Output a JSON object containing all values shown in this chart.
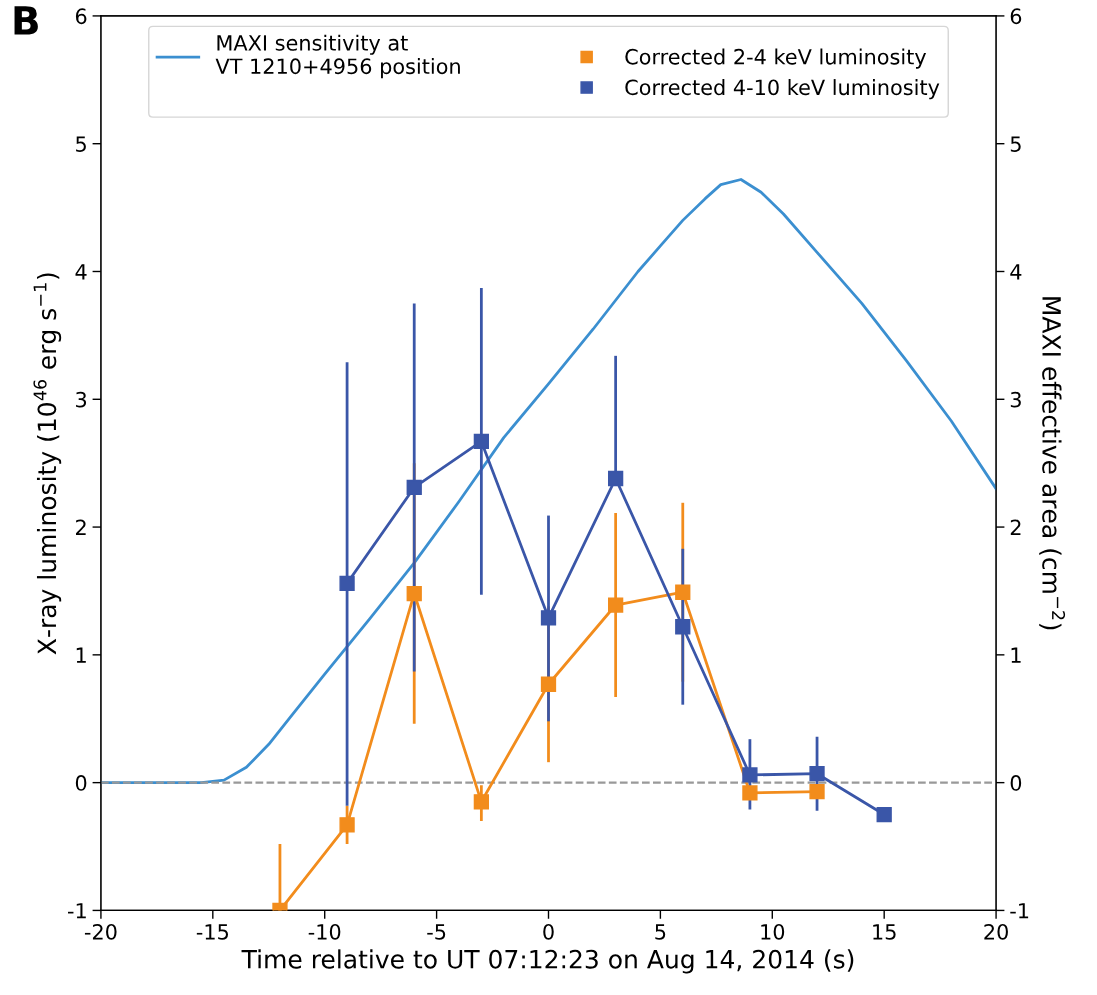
{
  "chart_data": {
    "type": "line",
    "xlabel": "Time relative to UT 07:12:23 on Aug 14, 2014 (s)",
    "ylabel": "X-ray luminosity (10$^{46}$ erg s$^{−1}$)",
    "y2label": "MAXI effective area (cm$^{−2}$)",
    "annotations": [
      "B"
    ],
    "xlim": [
      -20,
      20
    ],
    "xticks": [
      -20,
      -15,
      -10,
      -5,
      0,
      5,
      10,
      15,
      20
    ],
    "ylim": [
      -1,
      6
    ],
    "yticks": [
      -1,
      0,
      1,
      2,
      3,
      4,
      5,
      6
    ],
    "y2lim": [
      -1,
      6
    ],
    "y2ticks": [
      -1,
      0,
      1,
      2,
      3,
      4,
      5,
      6
    ],
    "grid": false,
    "legend": "top",
    "marker": "square",
    "line_style": "solid",
    "ref_lines": [
      {
        "axis": "y",
        "value": 0,
        "color": "#999999",
        "line_style": "dashed"
      }
    ],
    "series": [
      {
        "name": "MAXI sensitivity at\nVT 1210+4956 position",
        "axis": "y2",
        "color": "#3b8fd0",
        "marker": "none",
        "x": [
          -20,
          -15.5,
          -14.5,
          -13.5,
          -12.5,
          -11.5,
          -10,
          -8,
          -6,
          -4,
          -2,
          0,
          2,
          4,
          5,
          6,
          7,
          7.7,
          8.6,
          9.5,
          10.5,
          12,
          14,
          16,
          18,
          20
        ],
        "values": [
          0,
          0,
          0.02,
          0.12,
          0.3,
          0.52,
          0.85,
          1.28,
          1.72,
          2.2,
          2.7,
          3.12,
          3.55,
          4.0,
          4.2,
          4.4,
          4.57,
          4.68,
          4.72,
          4.62,
          4.45,
          4.15,
          3.75,
          3.3,
          2.83,
          2.3
        ]
      },
      {
        "name": "Corrected 2-4 keV luminosity",
        "color": "#f28c1c",
        "x": [
          -12,
          -9,
          -6,
          -3,
          0,
          3,
          6,
          9,
          12
        ],
        "values": [
          -1,
          -0.33,
          1.48,
          -0.15,
          0.77,
          1.39,
          1.49,
          -0.08,
          -0.07
        ],
        "errors": [
          [
            -1,
            -0.48
          ],
          [
            -0.48,
            -0.18
          ],
          [
            0.46,
            2.5
          ],
          [
            -0.3,
            -0.02
          ],
          [
            0.16,
            1.38
          ],
          [
            0.67,
            2.11
          ],
          [
            0.79,
            2.19
          ],
          null,
          null
        ]
      },
      {
        "name": "Corrected 4-10 keV luminosity",
        "color": "#3a56a8",
        "x": [
          -9,
          -6,
          -3,
          0,
          3,
          6,
          9,
          12,
          15
        ],
        "values": [
          1.56,
          2.31,
          2.67,
          1.29,
          2.38,
          1.22,
          0.06,
          0.07,
          -0.25
        ],
        "errors": [
          [
            -0.18,
            3.29
          ],
          [
            0.87,
            3.75
          ],
          [
            1.47,
            3.87
          ],
          [
            0.48,
            2.09
          ],
          [
            2.38,
            3.34
          ],
          [
            0.61,
            1.83
          ],
          [
            -0.21,
            0.34
          ],
          [
            -0.22,
            0.36
          ],
          null
        ]
      }
    ]
  }
}
